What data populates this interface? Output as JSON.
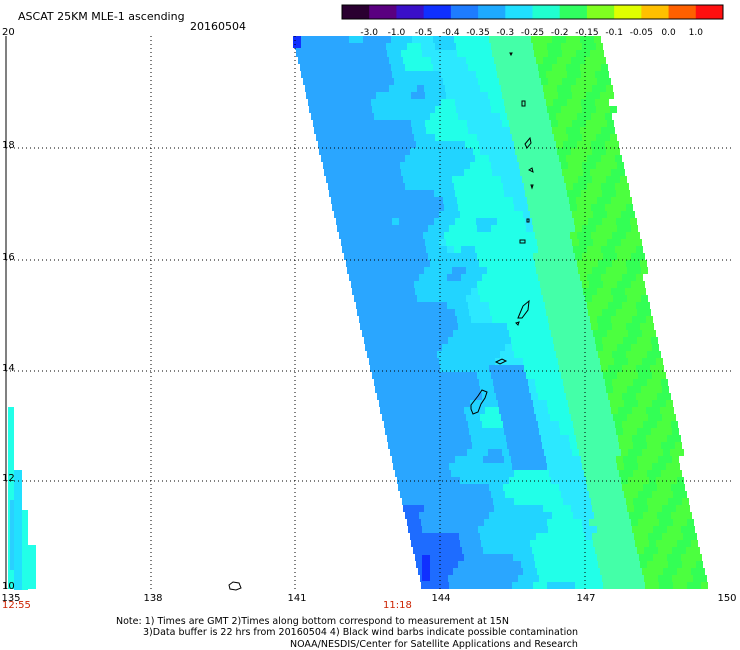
{
  "header": {
    "title": "ASCAT 25KM MLE-1 ascending",
    "date": "20160504"
  },
  "colorbar": {
    "labels": [
      "-3.0",
      "-1.0",
      "-0.5",
      "-0.4",
      "-0.35",
      "-0.3",
      "-0.25",
      "-0.2",
      "-0.15",
      "-0.1",
      "-0.05",
      "0.0",
      "1.0"
    ],
    "colors": [
      "#2a0030",
      "#5a0080",
      "#3a10c8",
      "#1030ff",
      "#1e7cff",
      "#1eaaff",
      "#20e0ff",
      "#20ffd0",
      "#30ff60",
      "#80ff20",
      "#e0ff00",
      "#ffc000",
      "#ff6000",
      "#ff1010"
    ]
  },
  "axes": {
    "lat_labels": [
      "20",
      "18",
      "16",
      "14",
      "12",
      "10"
    ],
    "lon_labels": [
      "135",
      "138",
      "141",
      "144",
      "147",
      "150"
    ],
    "time_labels": [
      "12:55",
      "11:18"
    ]
  },
  "footer": {
    "note_line1": "Note: 1) Times are GMT 2)Times along bottom correspond to measurement at 15N",
    "note_line2": "3)Data buffer is 22 hrs from 20160504 4) Black wind barbs indicate possible contamination",
    "credit": "NOAA/NESDIS/Center for Satellite Applications and Research"
  }
}
